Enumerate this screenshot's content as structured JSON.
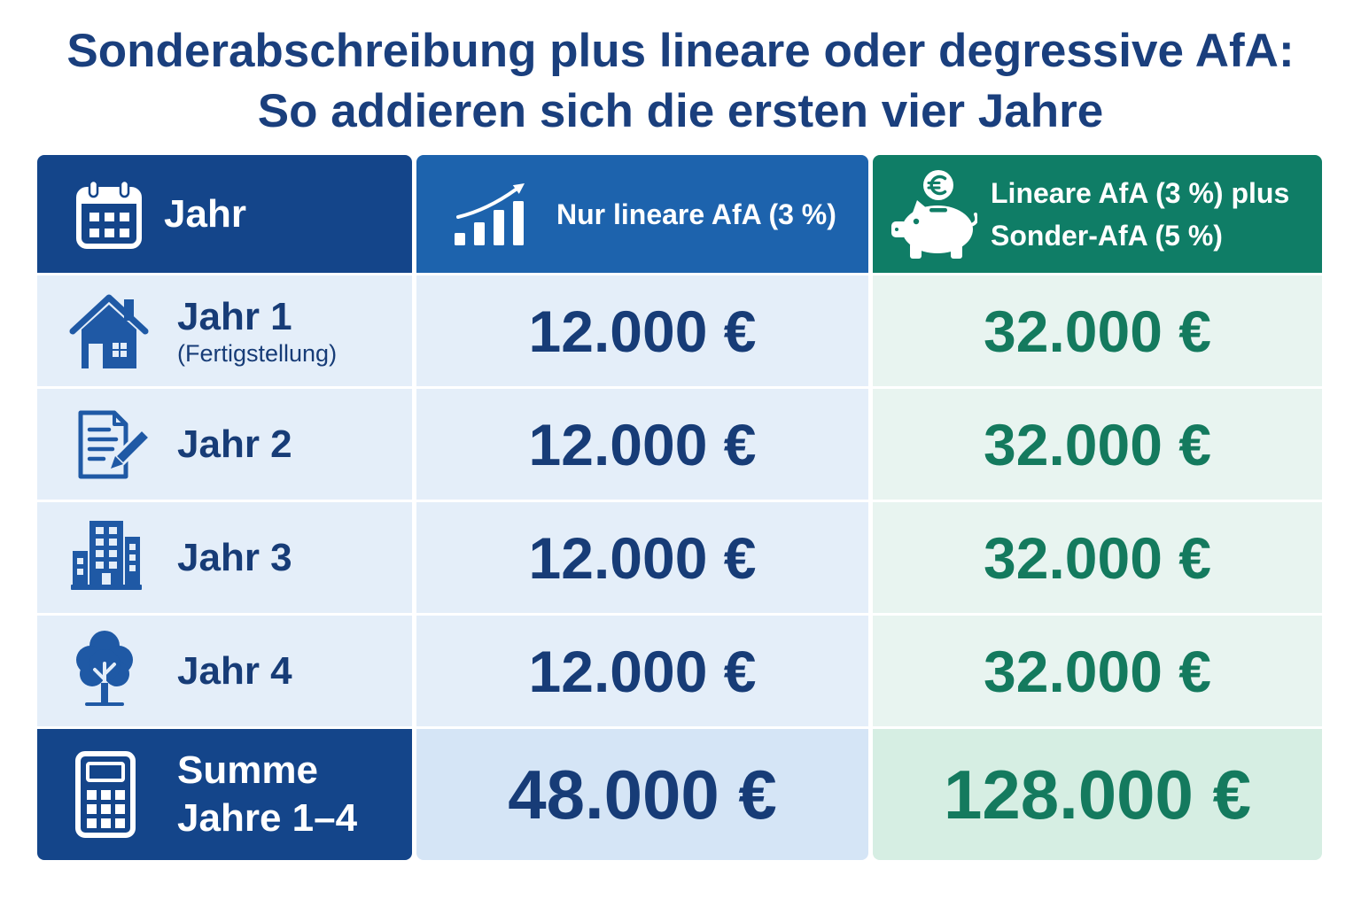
{
  "colors": {
    "title": "#1a3f7d",
    "header_year": "#14458a",
    "header_linear": "#1d63ad",
    "header_combined": "#0f7d66",
    "cell_blue_bg": "#e4eef9",
    "cell_green_bg": "#e8f4f0",
    "total_blue_bg": "#d5e5f6",
    "total_green_bg": "#d6eee3",
    "text_navy": "#173c77",
    "text_green": "#147a5e",
    "icon_blue": "#1f59a5"
  },
  "chart_data": {
    "type": "table",
    "title": [
      "Sonderabschreibung plus lineare oder degressive AfA:",
      "So addieren sich die ersten vier Jahre"
    ],
    "columns": [
      {
        "label": [
          "Jahr"
        ],
        "icon": "calendar-icon"
      },
      {
        "label": [
          "Nur lineare AfA (3 %)"
        ],
        "icon": "growth-chart-icon"
      },
      {
        "label": [
          "Lineare AfA (3 %) plus",
          "Sonder-AfA (5 %)"
        ],
        "icon": "piggy-bank-euro-icon"
      }
    ],
    "rows": [
      {
        "label": "Jahr 1",
        "note": "(Fertigstellung)",
        "icon": "house-icon",
        "values": [
          "12.000 €",
          "32.000 €"
        ]
      },
      {
        "label": "Jahr 2",
        "icon": "document-pen-icon",
        "values": [
          "12.000 €",
          "32.000 €"
        ]
      },
      {
        "label": "Jahr 3",
        "icon": "office-buildings-icon",
        "values": [
          "12.000 €",
          "32.000 €"
        ]
      },
      {
        "label": "Jahr 4",
        "icon": "tree-icon",
        "values": [
          "12.000 €",
          "32.000 €"
        ]
      }
    ],
    "total": {
      "label": [
        "Summe",
        "Jahre 1–4"
      ],
      "icon": "calculator-icon",
      "values": [
        "48.000 €",
        "128.000 €"
      ]
    }
  }
}
